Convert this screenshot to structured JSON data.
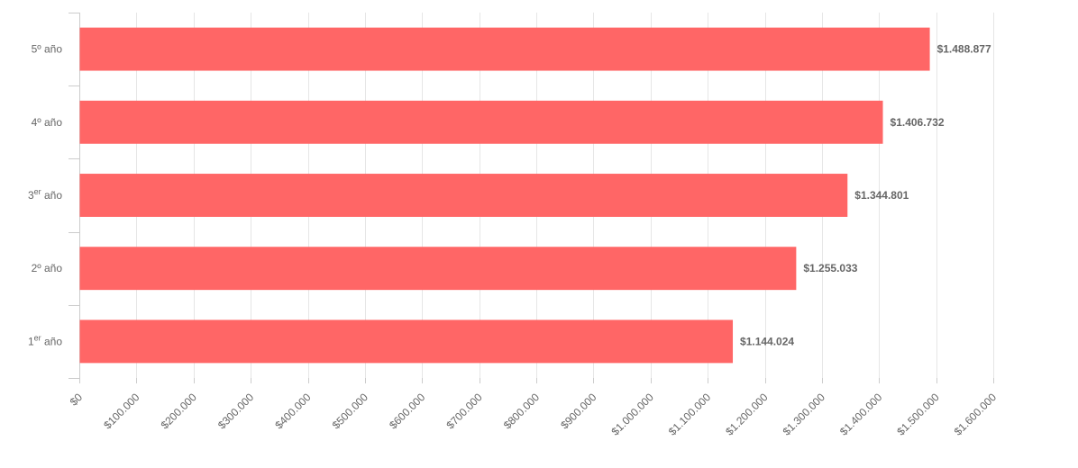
{
  "chart_data": {
    "type": "bar",
    "orientation": "horizontal",
    "title": "",
    "xlabel": "",
    "ylabel": "",
    "categories": [
      {
        "main": "1",
        "sup": "er",
        "rest": " año"
      },
      {
        "main": "2º año",
        "sup": "",
        "rest": ""
      },
      {
        "main": "3",
        "sup": "er",
        "rest": " año"
      },
      {
        "main": "4º año",
        "sup": "",
        "rest": ""
      },
      {
        "main": "5º año",
        "sup": "",
        "rest": ""
      }
    ],
    "values": [
      1144024,
      1255033,
      1344801,
      1406732,
      1488877
    ],
    "data_labels": [
      "$1.144.024",
      "$1.255.033",
      "$1.344.801",
      "$1.406.732",
      "$1.488.877"
    ],
    "xlim": [
      0,
      1600000
    ],
    "x_ticks": [
      0,
      100000,
      200000,
      300000,
      400000,
      500000,
      600000,
      700000,
      800000,
      900000,
      1000000,
      1100000,
      1200000,
      1300000,
      1400000,
      1500000,
      1600000
    ],
    "x_tick_labels": [
      "$0",
      "$100.000",
      "$200.000",
      "$300.000",
      "$400.000",
      "$500.000",
      "$600.000",
      "$700.000",
      "$800.000",
      "$900.000",
      "$1.000.000",
      "$1.100.000",
      "$1.200.000",
      "$1.300.000",
      "$1.400.000",
      "$1.500.000",
      "$1.600.000"
    ],
    "grid": true,
    "legend": "none",
    "bar_color": "#ff6666"
  }
}
